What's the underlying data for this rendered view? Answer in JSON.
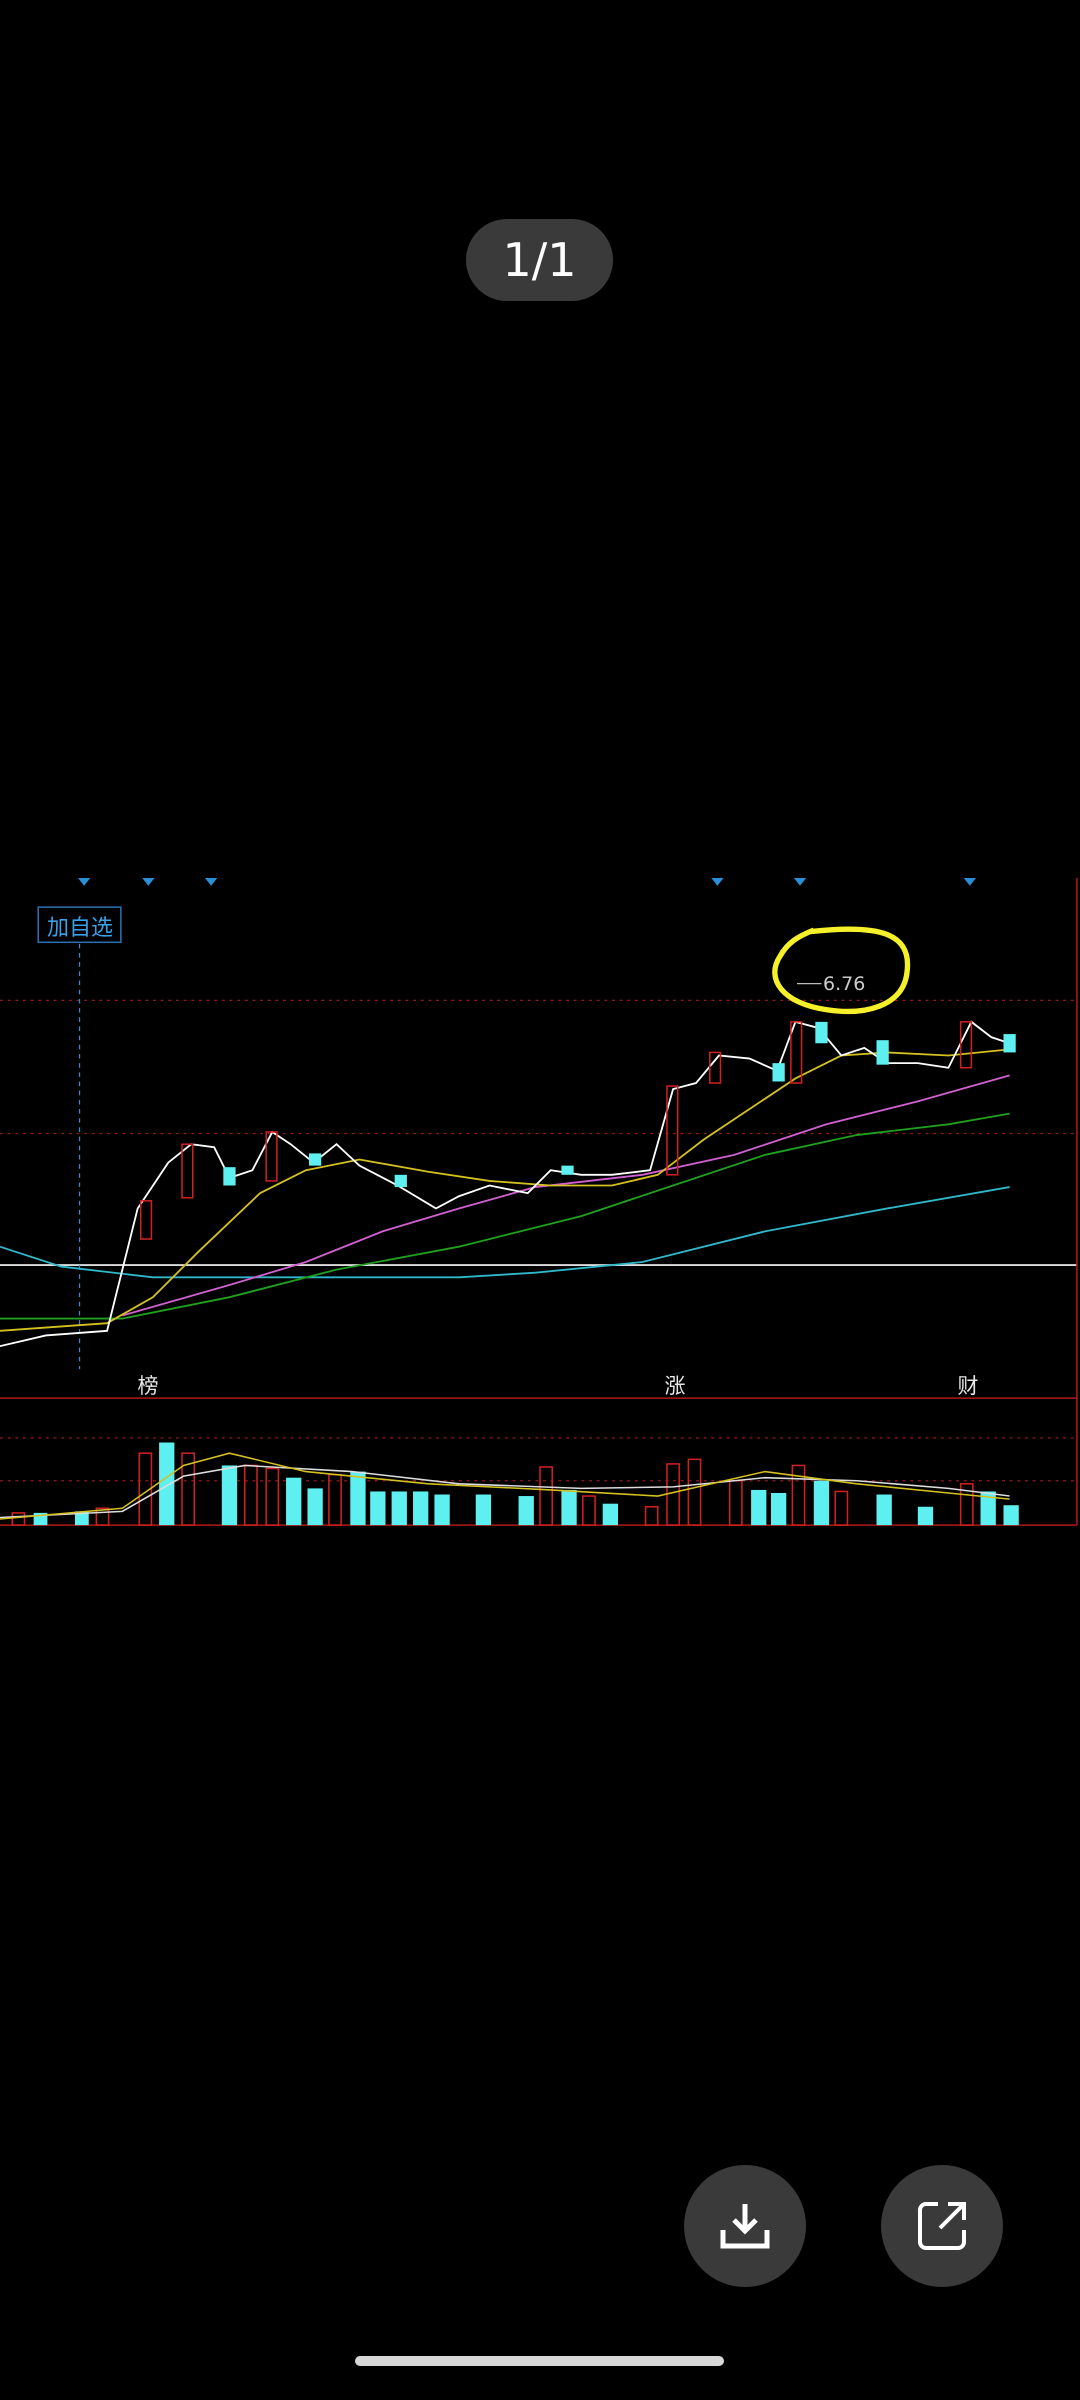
{
  "viewer": {
    "page_indicator": "1/1"
  },
  "chart": {
    "add_watchlist": "加自选",
    "price_callout": "6.76",
    "markers": [
      "榜",
      "涨",
      "财"
    ]
  }
}
